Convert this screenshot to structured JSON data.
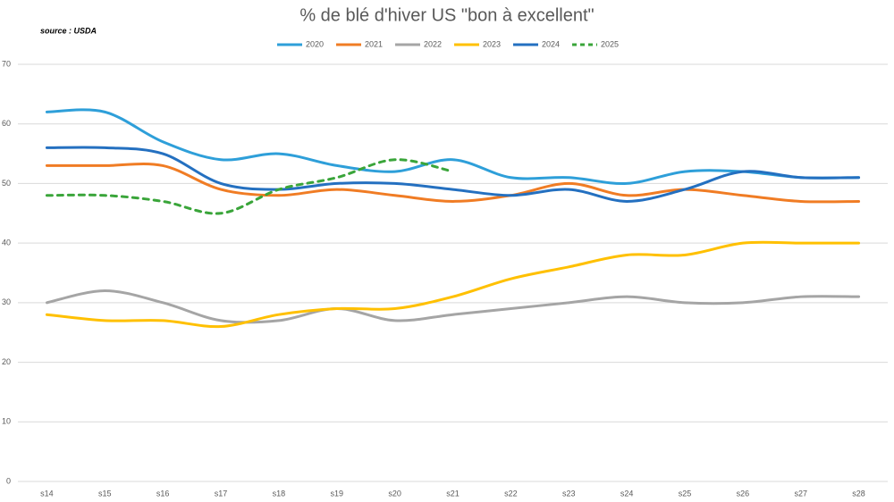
{
  "chart_data": {
    "type": "line",
    "title": "% de blé d'hiver US \"bon à excellent\"",
    "source": "source : USDA",
    "categories": [
      "s14",
      "s15",
      "s16",
      "s17",
      "s18",
      "s19",
      "s20",
      "s21",
      "s22",
      "s23",
      "s24",
      "s25",
      "s26",
      "s27",
      "s28"
    ],
    "series": [
      {
        "name": "2020",
        "color": "#2e9fd9",
        "values": [
          62,
          62,
          57,
          54,
          55,
          53,
          52,
          54,
          51,
          51,
          50,
          52,
          52,
          51,
          51
        ]
      },
      {
        "name": "2021",
        "color": "#f07c24",
        "values": [
          53,
          53,
          53,
          49,
          48,
          49,
          48,
          47,
          48,
          50,
          48,
          49,
          48,
          47,
          47
        ]
      },
      {
        "name": "2022",
        "color": "#a5a5a5",
        "values": [
          30,
          32,
          30,
          27,
          27,
          29,
          27,
          28,
          29,
          30,
          31,
          30,
          30,
          31,
          31
        ]
      },
      {
        "name": "2023",
        "color": "#ffc000",
        "values": [
          28,
          27,
          27,
          26,
          28,
          29,
          29,
          31,
          34,
          36,
          38,
          38,
          40,
          40,
          40
        ]
      },
      {
        "name": "2024",
        "color": "#2470c0",
        "values": [
          56,
          56,
          55,
          50,
          49,
          50,
          50,
          49,
          48,
          49,
          47,
          49,
          52,
          51,
          51
        ]
      },
      {
        "name": "2025",
        "color": "#3aa53a",
        "style": "dashed",
        "values": [
          48,
          48,
          47,
          45,
          49,
          51,
          54,
          52,
          null,
          null,
          null,
          null,
          null,
          null,
          null
        ]
      }
    ],
    "ylim": [
      0,
      70
    ],
    "yticks": [
      0,
      10,
      20,
      30,
      40,
      50,
      60,
      70
    ],
    "grid": true,
    "legend": "top",
    "smooth": true
  }
}
